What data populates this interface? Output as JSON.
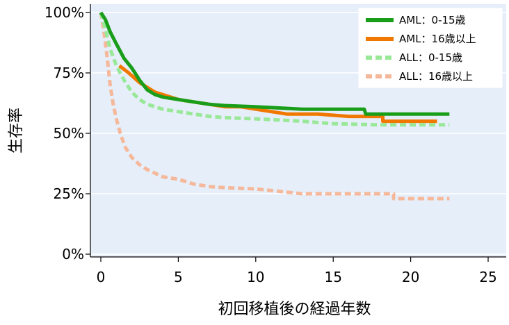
{
  "chart_data": {
    "type": "line",
    "xlabel": "初回移植後の経過年数",
    "ylabel": "生存率",
    "xlim": [
      0,
      25
    ],
    "ylim": [
      0,
      100
    ],
    "x_ticks": [
      "0",
      "5",
      "10",
      "15",
      "20",
      "25"
    ],
    "y_ticks": [
      "0%",
      "25%",
      "50%",
      "75%",
      "100%"
    ],
    "grid": true,
    "legend_position": "top-right",
    "background_color": "#e6eefa",
    "series": [
      {
        "name": "AML：0-15歳",
        "color": "#1a9e1a",
        "style": "solid",
        "points": [
          [
            0,
            100
          ],
          [
            0.3,
            97
          ],
          [
            0.6,
            92
          ],
          [
            1,
            87
          ],
          [
            1.5,
            81
          ],
          [
            2,
            77
          ],
          [
            2.5,
            72
          ],
          [
            3,
            68
          ],
          [
            3.5,
            66
          ],
          [
            4,
            65
          ],
          [
            5,
            64
          ],
          [
            6,
            63
          ],
          [
            7,
            62
          ],
          [
            8,
            61.5
          ],
          [
            10,
            61
          ],
          [
            13,
            60
          ],
          [
            17,
            60
          ],
          [
            17.1,
            58
          ],
          [
            22.5,
            58
          ]
        ]
      },
      {
        "name": "AML：16歳以上",
        "color": "#f07800",
        "style": "solid",
        "points": [
          [
            1.2,
            78
          ],
          [
            1.8,
            75
          ],
          [
            2.5,
            71
          ],
          [
            3,
            69
          ],
          [
            3.5,
            67
          ],
          [
            4,
            66
          ],
          [
            5,
            64
          ],
          [
            6,
            63
          ],
          [
            7,
            62
          ],
          [
            8,
            61
          ],
          [
            9,
            61
          ],
          [
            10,
            60
          ],
          [
            11,
            59
          ],
          [
            12,
            58
          ],
          [
            14,
            58
          ],
          [
            16,
            57
          ],
          [
            18.2,
            57
          ],
          [
            18.2,
            55
          ],
          [
            21.7,
            55
          ]
        ]
      },
      {
        "name": "ALL：0-15歳",
        "color": "#98e898",
        "style": "dashed",
        "points": [
          [
            0,
            100
          ],
          [
            0.3,
            93
          ],
          [
            0.6,
            85
          ],
          [
            1,
            78
          ],
          [
            1.5,
            72
          ],
          [
            2,
            67
          ],
          [
            2.5,
            64
          ],
          [
            3,
            62
          ],
          [
            4,
            60
          ],
          [
            5,
            59
          ],
          [
            6,
            58
          ],
          [
            7,
            57
          ],
          [
            8,
            56.5
          ],
          [
            10,
            56
          ],
          [
            13,
            55
          ],
          [
            15,
            54
          ],
          [
            18,
            53.5
          ],
          [
            22.5,
            53.5
          ]
        ]
      },
      {
        "name": "ALL：16歳以上",
        "color": "#f5b89a",
        "style": "dashed",
        "points": [
          [
            0,
            100
          ],
          [
            0.2,
            92
          ],
          [
            0.4,
            82
          ],
          [
            0.6,
            70
          ],
          [
            0.8,
            62
          ],
          [
            1,
            56
          ],
          [
            1.3,
            49
          ],
          [
            1.6,
            44
          ],
          [
            2,
            40
          ],
          [
            2.5,
            37
          ],
          [
            3,
            35
          ],
          [
            4,
            32
          ],
          [
            5,
            31
          ],
          [
            6,
            29
          ],
          [
            7,
            28
          ],
          [
            8,
            27.5
          ],
          [
            10,
            27
          ],
          [
            13,
            25
          ],
          [
            17,
            25
          ],
          [
            18.9,
            25
          ],
          [
            18.9,
            23
          ],
          [
            22.5,
            23
          ]
        ]
      }
    ]
  }
}
